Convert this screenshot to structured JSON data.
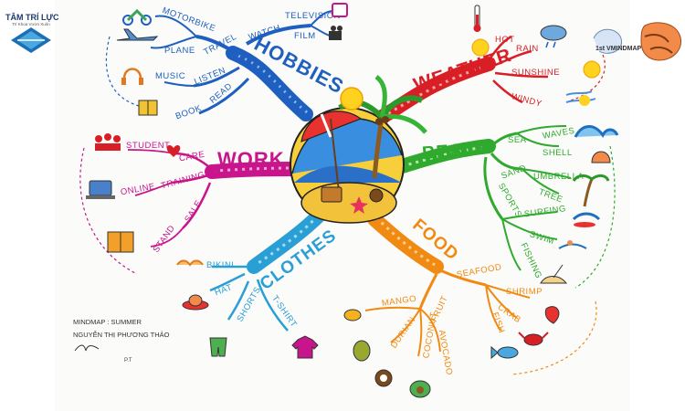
{
  "brand_left": {
    "name": "TÂM TRÍ LỰC",
    "tagline": "Trí Khoa Vươn Xuôn"
  },
  "brand_right": {
    "name": "1st VMINDMAP"
  },
  "center_topic": {
    "icon": "island-umbrella-palm-icon"
  },
  "branches": [
    {
      "label": "HOBBIES",
      "color": "#1e5fbf",
      "children": [
        {
          "label": "TRAVEL",
          "children": [
            "MOTORBIKE",
            "PLANE"
          ]
        },
        {
          "label": "WATCH",
          "children": [
            "TELEVISION",
            "FILM"
          ]
        },
        {
          "label": "LISTEN",
          "children": [
            "MUSIC"
          ]
        },
        {
          "label": "READ",
          "children": [
            "BOOK"
          ]
        }
      ]
    },
    {
      "label": "WEATHER",
      "color": "#d81f26",
      "children": [
        {
          "label": "HOT",
          "children": []
        },
        {
          "label": "RAIN",
          "children": []
        },
        {
          "label": "SUNSHINE",
          "children": []
        },
        {
          "label": "WINDY",
          "children": []
        }
      ]
    },
    {
      "label": "BEACH",
      "color": "#2faa2f",
      "children": [
        {
          "label": "SEA",
          "children": [
            "WAVES",
            "SHELL"
          ]
        },
        {
          "label": "SAND",
          "children": [
            "UMBRELLA",
            "TREE"
          ]
        },
        {
          "label": "SPORTS",
          "children": [
            "SURFING",
            "SWIM",
            "FISHING"
          ]
        }
      ]
    },
    {
      "label": "FOOD",
      "color": "#f08a12",
      "children": [
        {
          "label": "SEAFOOD",
          "children": [
            "SHRIMP",
            "CRAB",
            "FISH"
          ]
        },
        {
          "label": "FRUIT",
          "children": [
            "MANGO",
            "DURIAN",
            "COCONUT",
            "AVOCADO"
          ]
        }
      ]
    },
    {
      "label": "CLOTHES",
      "color": "#2a9fd6",
      "children": [
        {
          "label": "BIKINI",
          "children": []
        },
        {
          "label": "HAT",
          "children": []
        },
        {
          "label": "SHORTS",
          "children": []
        },
        {
          "label": "T-SHIRT",
          "children": []
        }
      ]
    },
    {
      "label": "WORK",
      "color": "#c8158c",
      "children": [
        {
          "label": "CARE",
          "children": [
            "STUDENT"
          ]
        },
        {
          "label": "TRAINING",
          "children": [
            "ONLINE"
          ]
        },
        {
          "label": "SALE",
          "children": [
            "STAND"
          ]
        }
      ]
    }
  ],
  "signature": {
    "line1": "MINDMAP : SUMMER",
    "line2": "NGUYỄN THỊ PHƯƠNG THẢO",
    "initials": "P.T"
  }
}
